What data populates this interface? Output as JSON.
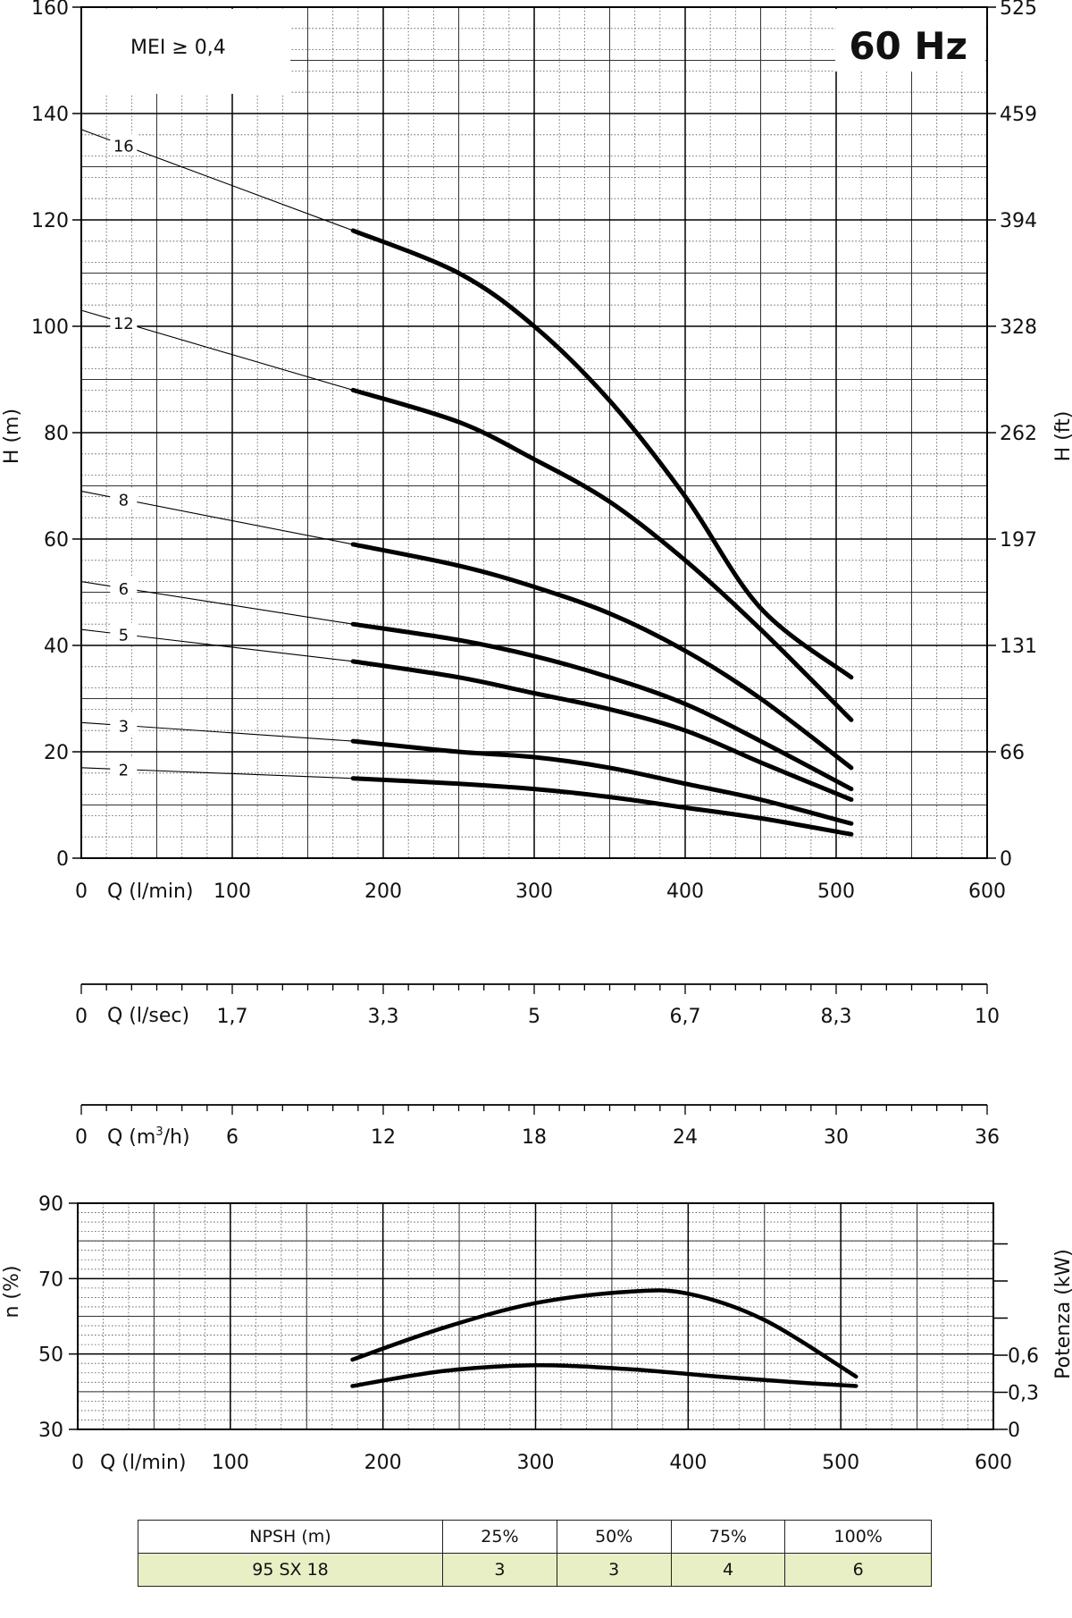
{
  "chart_data": [
    {
      "type": "line",
      "title": "60 Hz",
      "annotation": "MEI ≥ 0,4",
      "xlabel": "Q (l/min)",
      "ylabel": "H (m)",
      "y2label": "H (ft)",
      "xlim": [
        0,
        600
      ],
      "ylim": [
        0,
        160
      ],
      "xticks": [
        "0",
        "100",
        "200",
        "300",
        "400",
        "500",
        "600"
      ],
      "yticks": [
        "0",
        "20",
        "40",
        "60",
        "80",
        "100",
        "120",
        "140",
        "160"
      ],
      "y2ticks": [
        "0",
        "66",
        "131",
        "197",
        "262",
        "328",
        "394",
        "459",
        "525"
      ],
      "grid": true,
      "series": [
        {
          "name": "16",
          "x": [
            180,
            250,
            300,
            350,
            400,
            450,
            510
          ],
          "y": [
            118,
            110,
            100,
            86,
            68,
            47,
            34
          ],
          "extrapolated": [
            [
              0,
              137
            ],
            [
              180,
              118
            ]
          ]
        },
        {
          "name": "12",
          "x": [
            180,
            250,
            300,
            350,
            400,
            450,
            510
          ],
          "y": [
            88,
            82,
            75,
            67,
            56,
            43,
            26
          ],
          "extrapolated": [
            [
              0,
              103
            ],
            [
              180,
              88
            ]
          ]
        },
        {
          "name": "8",
          "x": [
            180,
            250,
            300,
            350,
            400,
            450,
            510
          ],
          "y": [
            59,
            55,
            51,
            46,
            39,
            30,
            17
          ],
          "extrapolated": [
            [
              0,
              69
            ],
            [
              180,
              59
            ]
          ]
        },
        {
          "name": "6",
          "x": [
            180,
            250,
            300,
            350,
            400,
            450,
            510
          ],
          "y": [
            44,
            41,
            38,
            34,
            29,
            22,
            13
          ],
          "extrapolated": [
            [
              0,
              52
            ],
            [
              180,
              44
            ]
          ]
        },
        {
          "name": "5",
          "x": [
            180,
            250,
            300,
            350,
            400,
            450,
            510
          ],
          "y": [
            37,
            34,
            31,
            28,
            24,
            18,
            11
          ],
          "extrapolated": [
            [
              0,
              43
            ],
            [
              180,
              37
            ]
          ]
        },
        {
          "name": "3",
          "x": [
            180,
            250,
            300,
            350,
            400,
            450,
            510
          ],
          "y": [
            22,
            20,
            19,
            17,
            14,
            11,
            6.5
          ],
          "extrapolated": [
            [
              0,
              25.5
            ],
            [
              180,
              22
            ]
          ]
        },
        {
          "name": "2",
          "x": [
            180,
            250,
            300,
            350,
            400,
            450,
            510
          ],
          "y": [
            15,
            14,
            13,
            11.5,
            9.5,
            7.5,
            4.5
          ],
          "extrapolated": [
            [
              0,
              17
            ],
            [
              180,
              15
            ]
          ]
        }
      ]
    },
    {
      "type": "axis",
      "xlabel": "Q (l/sec)",
      "xticks": [
        "0",
        "1,7",
        "3,3",
        "5",
        "6,7",
        "8,3",
        "10"
      ]
    },
    {
      "type": "axis",
      "xlabel": "Q (m³/h)",
      "xlabel_parts": [
        "Q (m",
        "3",
        "/h)"
      ],
      "xticks": [
        "0",
        "6",
        "12",
        "18",
        "24",
        "30",
        "36"
      ]
    },
    {
      "type": "line",
      "xlabel": "Q (l/min)",
      "ylabel": "n (%)",
      "y2label": "Potenza (kW)",
      "xlim": [
        0,
        600
      ],
      "ylim": [
        30,
        90
      ],
      "xticks": [
        "0",
        "100",
        "200",
        "300",
        "400",
        "500",
        "600"
      ],
      "yticks": [
        "30",
        "50",
        "70",
        "90"
      ],
      "y2ticks": [
        "0",
        "0,3",
        "0,6"
      ],
      "grid": true,
      "series": [
        {
          "x": [
            180,
            240,
            300,
            360,
            400,
            450,
            510
          ],
          "y": [
            48.5,
            57,
            63.5,
            66.5,
            66,
            59,
            44
          ]
        },
        {
          "x": [
            180,
            240,
            300,
            360,
            420,
            470,
            510
          ],
          "y": [
            41.5,
            45.5,
            47,
            46,
            44,
            42.5,
            41.5
          ]
        }
      ]
    }
  ],
  "npsh_table": {
    "header": [
      "NPSH (m)",
      "25%",
      "50%",
      "75%",
      "100%"
    ],
    "rows": [
      [
        "95 SX 18",
        "3",
        "3",
        "4",
        "6"
      ]
    ]
  }
}
